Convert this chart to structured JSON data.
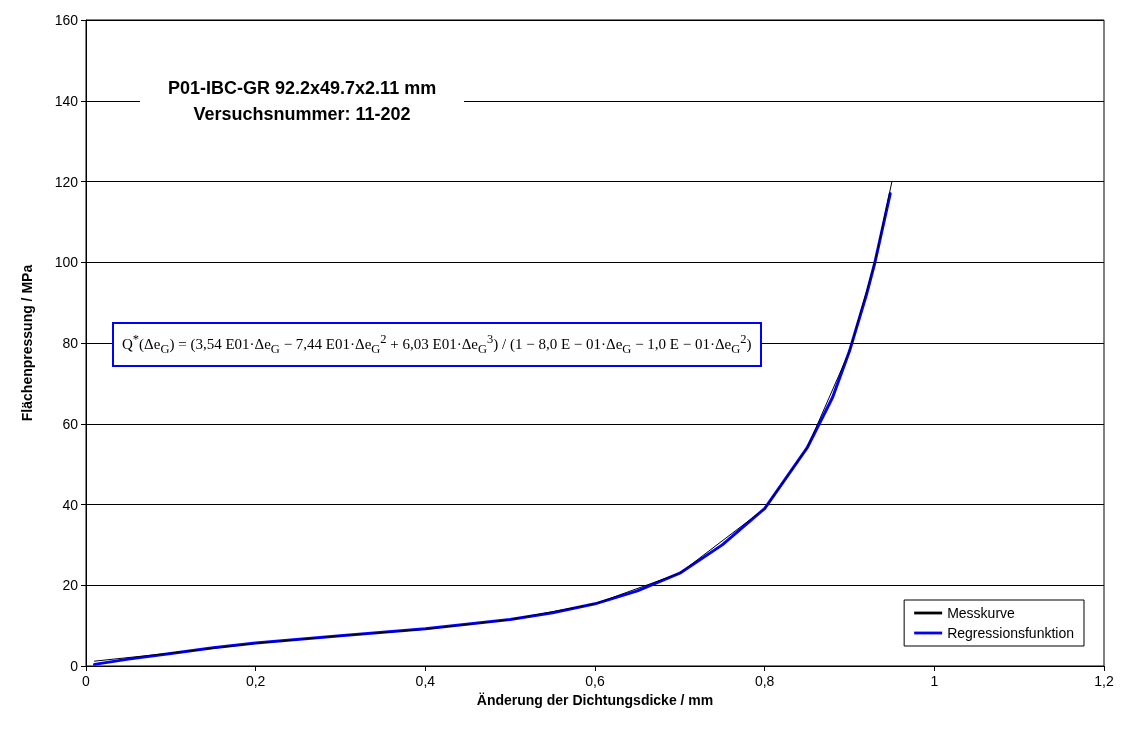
{
  "chart_data": {
    "type": "line",
    "title": "P01-IBC-GR 92.2x49.7x2.11 mm",
    "subtitle": "Versuchsnummer: 11-202",
    "xlabel": "Änderung der Dichtungsdicke / mm",
    "ylabel": "Flächenpressung / MPa",
    "annotations": [
      "Q$^{*}$(Δe$_{G}$) = (3,54 E01·Δe$_{G}$ − 7,44 E01·Δe$_{G}$$^{2}$ + 6,03 E01·Δe$_{G}$$^{3}$) / (1 − 8,0 E − 01·Δe$_{G}$ − 1,0 E − 01·Δe$_{G}$$^{2}$)"
    ],
    "series": [
      {
        "name": "Messkurve",
        "color": "#000000",
        "x": [
          0.01,
          0.1,
          0.2,
          0.3,
          0.4,
          0.5,
          0.6,
          0.7,
          0.8,
          0.85,
          0.9,
          0.93,
          0.95
        ],
        "values": [
          1.2,
          3.2,
          5.6,
          7.5,
          9.1,
          11.5,
          15.4,
          23,
          39,
          54,
          78,
          100,
          120
        ]
      },
      {
        "name": "Regressionsfunktion",
        "color": "#0000ff",
        "x": [
          0.01,
          0.05,
          0.1,
          0.15,
          0.2,
          0.3,
          0.4,
          0.5,
          0.55,
          0.6,
          0.65,
          0.7,
          0.75,
          0.8,
          0.85,
          0.88,
          0.9,
          0.92,
          0.93,
          0.948
        ],
        "values": [
          0.4,
          1.7,
          3.1,
          4.5,
          5.7,
          7.5,
          9.2,
          11.5,
          13.2,
          15.4,
          18.6,
          23,
          30,
          39,
          54,
          66.5,
          78,
          92,
          100,
          117
        ]
      }
    ],
    "xlim": [
      0,
      1.2
    ],
    "xticks": [
      0,
      {
        "value": 0.2,
        "label": "0,2"
      },
      {
        "value": 0.4,
        "label": "0,4"
      },
      {
        "value": 0.6,
        "label": "0,6"
      },
      {
        "value": 0.8,
        "label": "0,8"
      },
      1,
      {
        "value": 1.2,
        "label": "1,2"
      }
    ],
    "ylim": [
      0,
      160
    ],
    "yticks": [
      0,
      20,
      40,
      60,
      80,
      100,
      120,
      140,
      160
    ],
    "grid": "y",
    "legend": "bottom right",
    "marker": "none",
    "line_style": "solid"
  }
}
